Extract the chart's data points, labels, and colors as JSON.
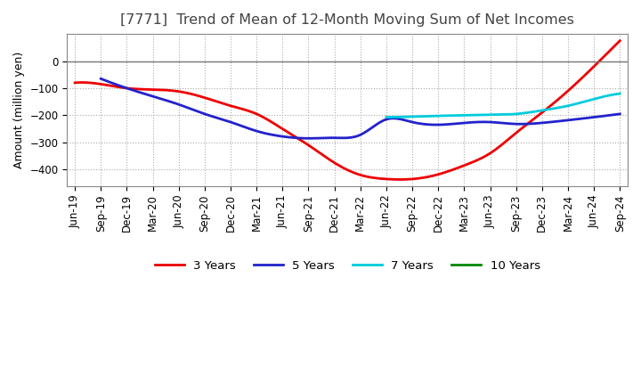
{
  "title": "[7771]  Trend of Mean of 12-Month Moving Sum of Net Incomes",
  "ylabel": "Amount (million yen)",
  "xlabels": [
    "Jun-19",
    "Sep-19",
    "Dec-19",
    "Mar-20",
    "Jun-20",
    "Sep-20",
    "Dec-20",
    "Mar-21",
    "Jun-21",
    "Sep-21",
    "Dec-21",
    "Mar-22",
    "Jun-22",
    "Sep-22",
    "Dec-22",
    "Mar-23",
    "Jun-23",
    "Sep-23",
    "Dec-23",
    "Mar-24",
    "Jun-24",
    "Sep-24"
  ],
  "ylim": [
    -460,
    100
  ],
  "yticks": [
    -400,
    -300,
    -200,
    -100,
    0
  ],
  "series": {
    "3 Years": {
      "color": "#EE0000",
      "data": [
        -80,
        -85,
        -100,
        -105,
        -112,
        -135,
        -165,
        -195,
        -250,
        -310,
        -375,
        -420,
        -435,
        -435,
        -418,
        -385,
        -340,
        -265,
        -190,
        -110,
        -20,
        75
      ]
    },
    "5 Years": {
      "color": "#2222CC",
      "data": [
        null,
        -65,
        -100,
        -130,
        -160,
        -195,
        -225,
        -258,
        -278,
        -285,
        -283,
        -272,
        -215,
        -225,
        -235,
        -228,
        -225,
        -232,
        -228,
        -218,
        -207,
        -195
      ]
    },
    "7 Years": {
      "color": "#00CCDD",
      "data": [
        null,
        null,
        null,
        null,
        null,
        null,
        null,
        null,
        null,
        null,
        null,
        null,
        -207,
        -205,
        -202,
        -200,
        -198,
        -195,
        -182,
        -165,
        -140,
        -120
      ]
    },
    "10 Years": {
      "color": "#008800",
      "data": [
        null,
        null,
        null,
        null,
        null,
        null,
        null,
        null,
        null,
        null,
        null,
        null,
        null,
        null,
        null,
        null,
        null,
        null,
        null,
        null,
        null,
        null
      ]
    }
  },
  "legend_labels": [
    "3 Years",
    "5 Years",
    "7 Years",
    "10 Years"
  ],
  "legend_colors": [
    "#EE0000",
    "#2222CC",
    "#00CCDD",
    "#008800"
  ],
  "background_color": "#FFFFFF",
  "grid_color": "#AAAAAA",
  "title_fontsize": 11.5,
  "title_color": "#444444",
  "axis_fontsize": 9,
  "tick_fontsize": 8.5,
  "legend_fontsize": 9.5
}
